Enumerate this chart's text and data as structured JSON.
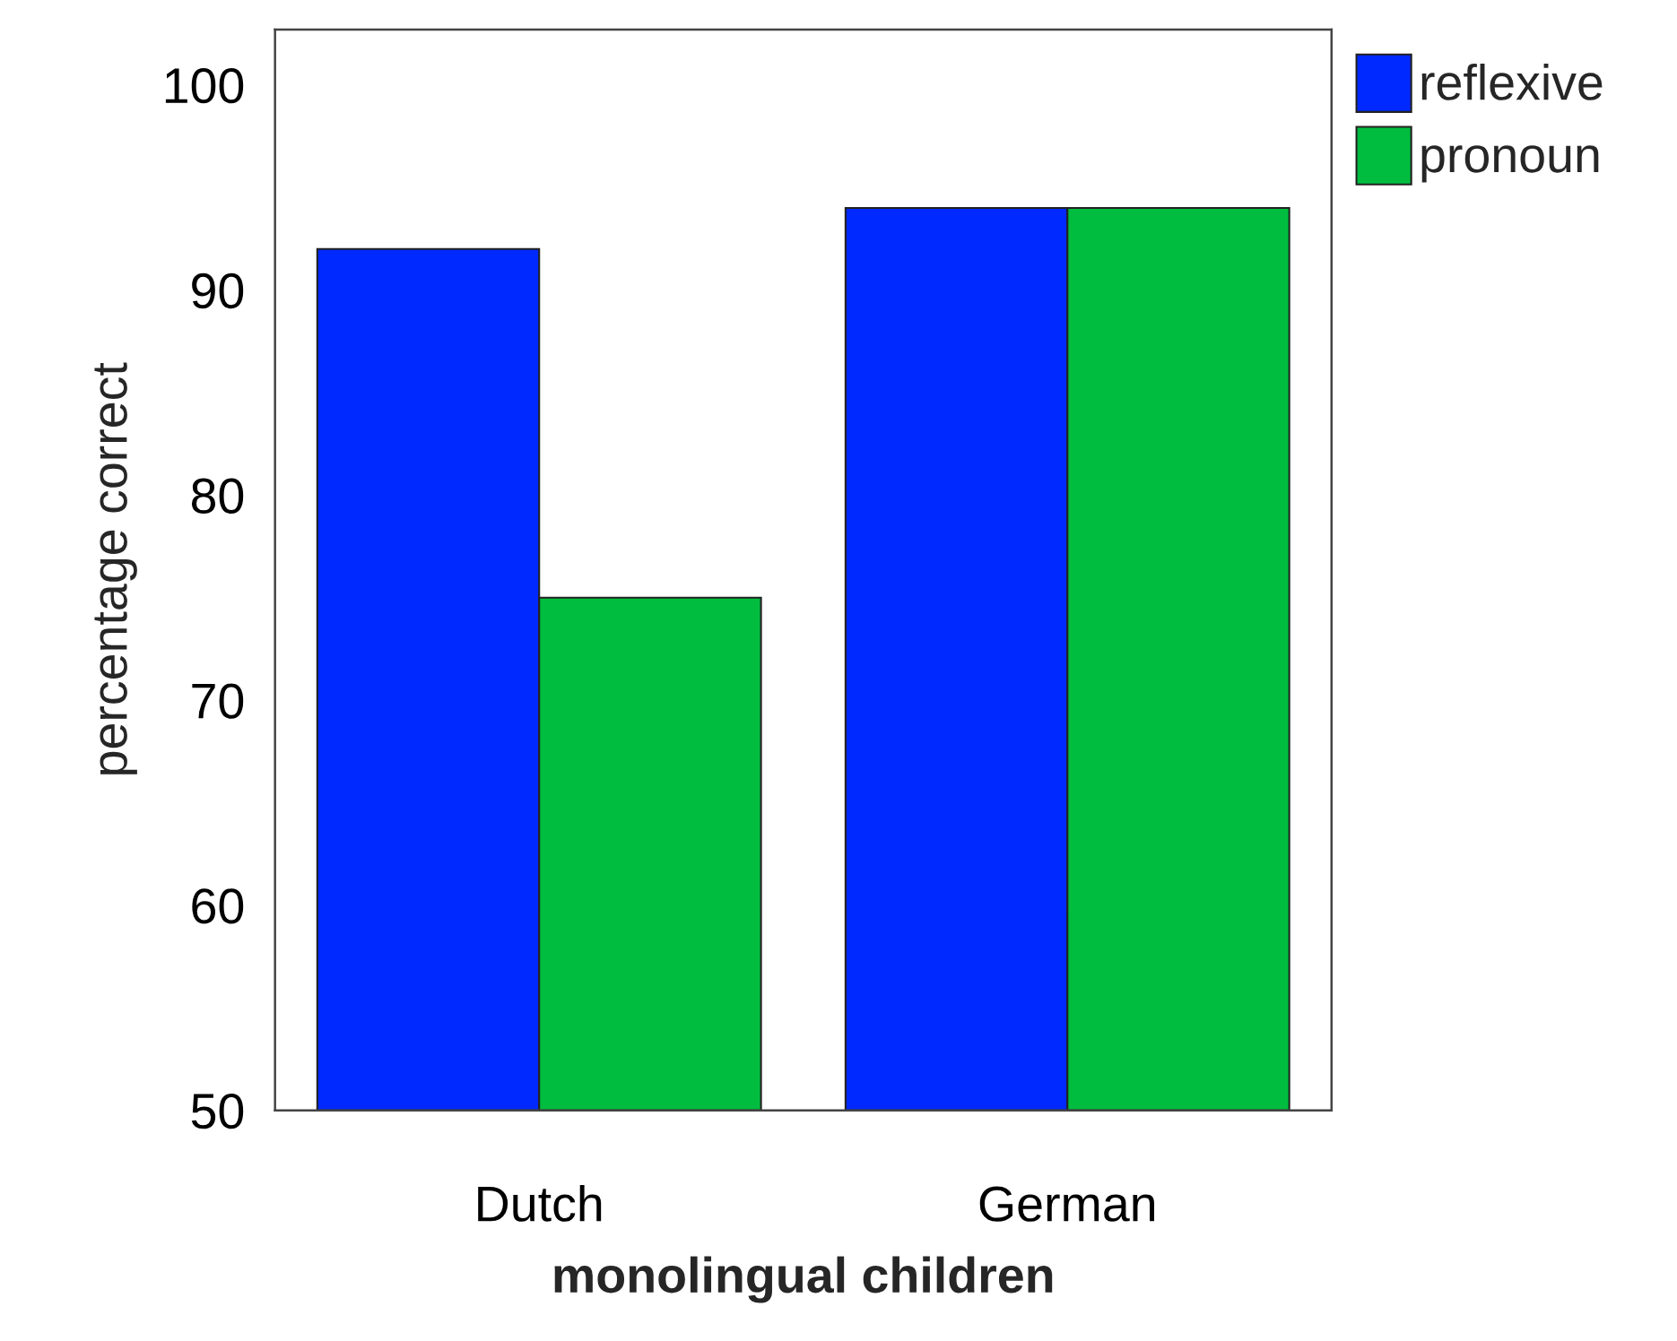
{
  "chart_data": {
    "type": "bar",
    "xlabel": "monolingual children",
    "ylabel": "percentage correct",
    "categories": [
      "Dutch",
      "German"
    ],
    "series": [
      {
        "name": "reflexive",
        "color": "#0029ff",
        "values": [
          92,
          94
        ]
      },
      {
        "name": "pronoun",
        "color": "#00bd3f",
        "values": [
          75,
          94
        ]
      }
    ],
    "ylim": [
      50,
      102.7
    ],
    "yticks": [
      50,
      60,
      70,
      80,
      90,
      100
    ],
    "grid": false,
    "legend": "top right"
  }
}
